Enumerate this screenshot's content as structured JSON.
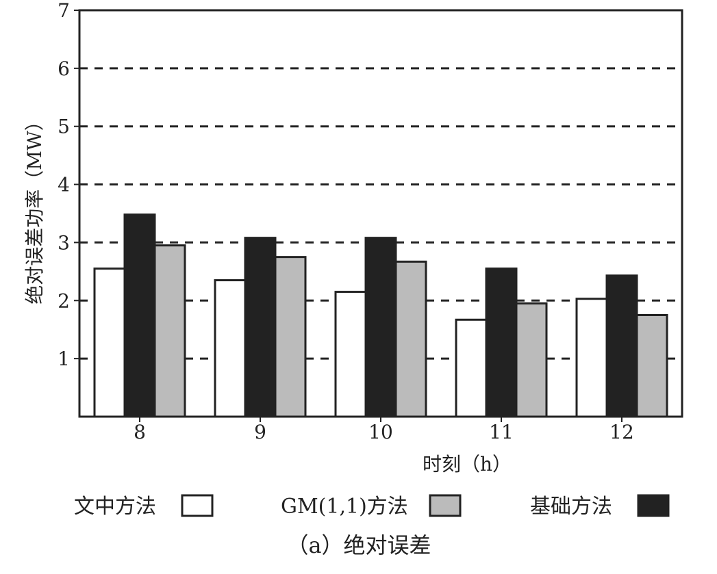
{
  "chart_data": {
    "type": "bar",
    "categories": [
      "8",
      "9",
      "10",
      "11",
      "12"
    ],
    "series": [
      {
        "name": "文中方法",
        "values": [
          2.55,
          2.35,
          2.15,
          1.67,
          2.03
        ],
        "color": "#ffffff"
      },
      {
        "name": "基础方法",
        "values": [
          3.48,
          3.08,
          3.08,
          2.55,
          2.43
        ],
        "color": "#222222"
      },
      {
        "name": "GM(1,1)方法",
        "values": [
          2.95,
          2.75,
          2.67,
          1.95,
          1.75
        ],
        "color": "#bbbbbb"
      }
    ],
    "legend_order": [
      "文中方法",
      "GM(1,1)方法",
      "基础方法"
    ],
    "xlabel": "时刻（h）",
    "ylabel": "绝对误差功率（MW）",
    "yticks": [
      "1",
      "2",
      "3",
      "4",
      "5",
      "6",
      "7"
    ],
    "ylim": [
      0,
      7
    ],
    "grid": "dashed horizontal",
    "legend_position": "bottom",
    "caption": "（a）绝对误差"
  }
}
